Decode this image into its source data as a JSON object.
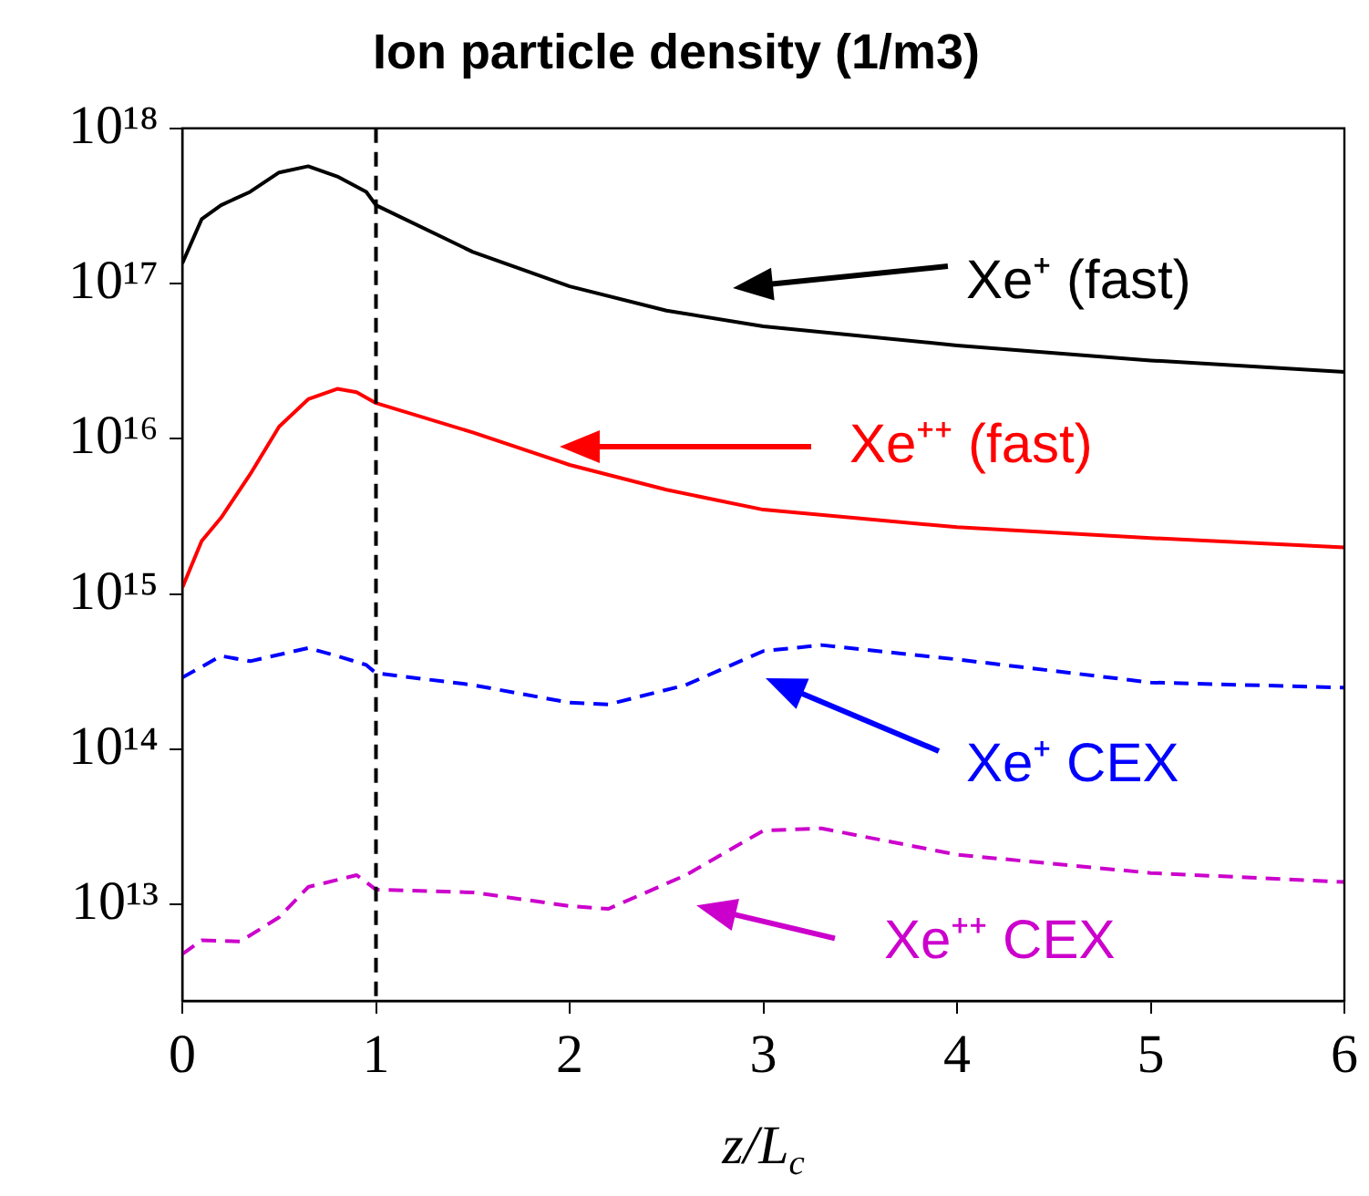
{
  "chart_data": {
    "type": "line",
    "title": "Ion particle density (1/m3)",
    "xlabel": "z/L$_{c}$",
    "xlim": [
      0,
      6
    ],
    "xticks": [
      0,
      1,
      2,
      3,
      4,
      5,
      6
    ],
    "ylim": [
      2400000000000.0,
      1e+18
    ],
    "yticks": [
      {
        "value": 10000000000000.0,
        "label": "10¹³"
      },
      {
        "value": 100000000000000.0,
        "label": "10¹⁴"
      },
      {
        "value": 1000000000000000.0,
        "label": "10¹⁵"
      },
      {
        "value": 1e+16,
        "label": "10¹⁶"
      },
      {
        "value": 1e+17,
        "label": "10¹⁷"
      },
      {
        "value": 1e+18,
        "label": "10¹⁸"
      }
    ],
    "log": "y",
    "grid": false,
    "legend": "right",
    "ref_lines": [
      {
        "axis": "x",
        "value": 1,
        "color": "#000000",
        "line_style": "dashed"
      }
    ],
    "series": [
      {
        "name": "Xe⁺ (fast)",
        "color": "#000000",
        "line_style": "solid",
        "x": [
          0,
          0.1,
          0.2,
          0.35,
          0.5,
          0.65,
          0.8,
          0.95,
          1,
          1.5,
          2,
          2.5,
          3,
          4,
          5,
          6
        ],
        "values": [
          1.35e+17,
          2.6e+17,
          3.2e+17,
          3.9e+17,
          5.2e+17,
          5.7e+17,
          4.9e+17,
          3.9e+17,
          3.2e+17,
          1.6e+17,
          9.6e+16,
          6.7e+16,
          5.3e+16,
          4e+16,
          3.2e+16,
          2.7e+16
        ]
      },
      {
        "name": "Xe⁺⁺ (fast)",
        "color": "#ff0000",
        "line_style": "solid",
        "x": [
          0,
          0.1,
          0.2,
          0.35,
          0.5,
          0.65,
          0.8,
          0.9,
          1,
          1.5,
          2,
          2.5,
          3,
          4,
          5,
          6
        ],
        "values": [
          1100000000000000.0,
          2200000000000000.0,
          3100000000000000.0,
          5900000000000000.0,
          1.2e+16,
          1.8e+16,
          2.1e+16,
          2e+16,
          1.7e+16,
          1.1e+16,
          6800000000000000.0,
          4700000000000000.0,
          3500000000000000.0,
          2700000000000000.0,
          2300000000000000.0,
          2000000000000000.0
        ]
      },
      {
        "name": "Xe⁺ CEX",
        "color": "#0000ff",
        "line_style": "dashed",
        "x": [
          0,
          0.2,
          0.35,
          0.65,
          0.8,
          0.95,
          1,
          1.5,
          2,
          2.2,
          2.6,
          3,
          3.3,
          4,
          5,
          6
        ],
        "values": [
          290000000000000.0,
          400000000000000.0,
          370000000000000.0,
          450000000000000.0,
          400000000000000.0,
          350000000000000.0,
          310000000000000.0,
          260000000000000.0,
          200000000000000.0,
          195000000000000.0,
          260000000000000.0,
          430000000000000.0,
          470000000000000.0,
          380000000000000.0,
          270000000000000.0,
          250000000000000.0
        ]
      },
      {
        "name": "Xe⁺⁺ CEX",
        "color": "#cc00cc",
        "line_style": "dashed",
        "x": [
          0,
          0.1,
          0.3,
          0.5,
          0.65,
          0.9,
          1,
          1.5,
          2,
          2.2,
          2.6,
          3,
          3.3,
          4,
          5,
          6
        ],
        "values": [
          4800000000000.0,
          5900000000000.0,
          5800000000000.0,
          8300000000000.0,
          13000000000000.0,
          15500000000000.0,
          12500000000000.0,
          12000000000000.0,
          9800000000000.0,
          9400000000000.0,
          15500000000000.0,
          30000000000000.0,
          31000000000000.0,
          21000000000000.0,
          16000000000000.0,
          14000000000000.0
        ]
      }
    ]
  }
}
